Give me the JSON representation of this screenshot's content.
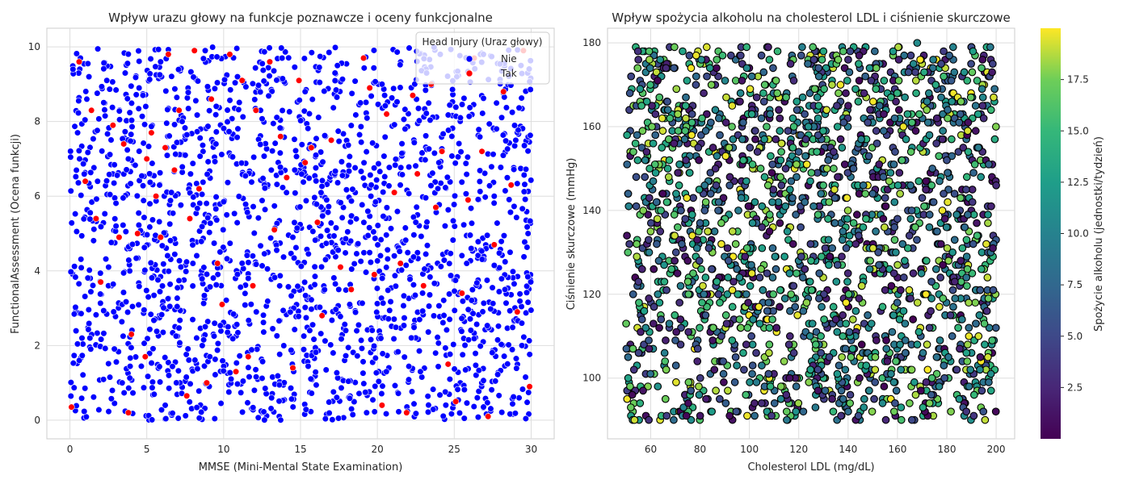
{
  "chart_data": [
    {
      "type": "scatter",
      "title": "Wpływ urazu głowy na funkcje poznawcze i oceny funkcjonalne",
      "xlabel": "MMSE (Mini-Mental State Examination)",
      "ylabel": "FunctionalAssessment (Ocena funkcji)",
      "xlim": [
        -1.5,
        31.5
      ],
      "ylim": [
        -0.5,
        10.5
      ],
      "xticks": [
        0,
        5,
        10,
        15,
        20,
        25,
        30
      ],
      "yticks": [
        0,
        2,
        4,
        6,
        8,
        10
      ],
      "grid": true,
      "legend": {
        "title": "Head Injury (Uraz głowy)",
        "placement": "top-right",
        "entries": [
          {
            "label": "Nie",
            "color": "#0000ff"
          },
          {
            "label": "Tak",
            "color": "#ff0000"
          }
        ]
      },
      "series": [
        {
          "name": "Nie",
          "color": "#0000ff",
          "approx_count": 1950,
          "points": [
            [
              0.2,
              9.4
            ],
            [
              0.5,
              7.7
            ],
            [
              1.1,
              8.6
            ],
            [
              1.8,
              6.4
            ],
            [
              2.4,
              9.1
            ],
            [
              3.0,
              5.2
            ],
            [
              3.8,
              7.0
            ],
            [
              4.5,
              8.9
            ],
            [
              5.1,
              3.3
            ],
            [
              5.9,
              9.6
            ],
            [
              6.6,
              6.1
            ],
            [
              7.3,
              8.0
            ],
            [
              8.0,
              4.2
            ],
            [
              8.8,
              9.9
            ],
            [
              9.5,
              7.4
            ],
            [
              10.2,
              5.5
            ],
            [
              10.9,
              9.2
            ],
            [
              11.6,
              3.8
            ],
            [
              12.4,
              8.3
            ],
            [
              13.1,
              6.7
            ],
            [
              13.8,
              9.7
            ],
            [
              14.5,
              4.9
            ],
            [
              15.3,
              8.8
            ],
            [
              16.0,
              7.1
            ],
            [
              16.7,
              5.9
            ],
            [
              17.4,
              9.5
            ],
            [
              18.2,
              3.1
            ],
            [
              18.9,
              8.5
            ],
            [
              19.6,
              6.3
            ],
            [
              20.3,
              9.0
            ],
            [
              21.1,
              4.4
            ],
            [
              21.8,
              7.8
            ],
            [
              22.5,
              5.3
            ],
            [
              23.2,
              9.3
            ],
            [
              24.0,
              6.9
            ],
            [
              24.7,
              2.7
            ],
            [
              25.4,
              8.1
            ],
            [
              26.1,
              4.6
            ],
            [
              26.9,
              9.8
            ],
            [
              27.6,
              6.0
            ],
            [
              28.3,
              3.5
            ],
            [
              29.0,
              7.5
            ],
            [
              29.8,
              5.0
            ],
            [
              1.3,
              2.2
            ],
            [
              3.4,
              1.0
            ],
            [
              6.2,
              0.4
            ],
            [
              9.1,
              1.7
            ],
            [
              12.0,
              0.8
            ],
            [
              15.6,
              2.4
            ],
            [
              19.3,
              0.2
            ],
            [
              22.8,
              1.3
            ],
            [
              26.5,
              0.6
            ],
            [
              29.4,
              2.0
            ]
          ]
        },
        {
          "name": "Tak",
          "color": "#ff0000",
          "approx_count": 110,
          "points": [
            [
              0.1,
              0.35
            ],
            [
              0.6,
              9.6
            ],
            [
              1.0,
              6.4
            ],
            [
              1.4,
              8.3
            ],
            [
              1.7,
              5.4
            ],
            [
              2.0,
              3.7
            ],
            [
              2.8,
              7.9
            ],
            [
              3.2,
              4.9
            ],
            [
              3.5,
              7.4
            ],
            [
              3.8,
              0.2
            ],
            [
              4.0,
              2.3
            ],
            [
              4.4,
              5.0
            ],
            [
              4.9,
              1.7
            ],
            [
              5.0,
              7.0
            ],
            [
              5.3,
              7.7
            ],
            [
              5.6,
              6.0
            ],
            [
              5.9,
              4.9
            ],
            [
              6.2,
              7.3
            ],
            [
              6.4,
              9.8
            ],
            [
              6.8,
              6.7
            ],
            [
              7.1,
              8.3
            ],
            [
              7.6,
              0.65
            ],
            [
              7.8,
              5.4
            ],
            [
              8.1,
              9.9
            ],
            [
              8.4,
              6.2
            ],
            [
              8.9,
              1.0
            ],
            [
              9.2,
              8.6
            ],
            [
              9.6,
              4.2
            ],
            [
              9.9,
              3.1
            ],
            [
              10.4,
              9.8
            ],
            [
              10.8,
              1.3
            ],
            [
              11.2,
              9.1
            ],
            [
              11.6,
              1.7
            ],
            [
              11.9,
              3.6
            ],
            [
              12.1,
              8.3
            ],
            [
              13.0,
              9.6
            ],
            [
              13.3,
              5.1
            ],
            [
              13.7,
              7.6
            ],
            [
              14.1,
              6.5
            ],
            [
              14.5,
              1.4
            ],
            [
              14.9,
              9.1
            ],
            [
              15.3,
              6.9
            ],
            [
              15.7,
              7.3
            ],
            [
              16.1,
              5.3
            ],
            [
              16.4,
              2.8
            ],
            [
              17.0,
              7.5
            ],
            [
              17.6,
              4.1
            ],
            [
              18.3,
              3.5
            ],
            [
              19.1,
              9.7
            ],
            [
              19.5,
              8.9
            ],
            [
              19.8,
              3.9
            ],
            [
              20.3,
              0.4
            ],
            [
              20.6,
              8.2
            ],
            [
              21.1,
              6.1
            ],
            [
              21.5,
              4.2
            ],
            [
              21.9,
              0.2
            ],
            [
              22.3,
              8.7
            ],
            [
              22.6,
              6.6
            ],
            [
              23.0,
              3.6
            ],
            [
              23.5,
              9.0
            ],
            [
              23.8,
              5.7
            ],
            [
              24.2,
              7.2
            ],
            [
              24.6,
              1.5
            ],
            [
              25.1,
              0.5
            ],
            [
              25.5,
              3.4
            ],
            [
              25.9,
              5.9
            ],
            [
              26.3,
              9.7
            ],
            [
              26.8,
              7.2
            ],
            [
              27.2,
              0.1
            ],
            [
              27.6,
              4.7
            ],
            [
              28.2,
              8.8
            ],
            [
              28.7,
              6.3
            ],
            [
              29.1,
              2.9
            ],
            [
              29.5,
              9.9
            ],
            [
              29.9,
              0.9
            ]
          ]
        }
      ]
    },
    {
      "type": "scatter",
      "title": "Wpływ spożycia alkoholu na cholesterol LDL i ciśnienie skurczowe",
      "xlabel": "Cholesterol LDL (mg/dL)",
      "ylabel": "Ciśnienie skurczowe (mmHg)",
      "xlim": [
        42.5,
        207.5
      ],
      "ylim": [
        85.5,
        183.5
      ],
      "xticks": [
        60,
        80,
        100,
        120,
        140,
        160,
        180,
        200
      ],
      "yticks": [
        100,
        120,
        140,
        160,
        180
      ],
      "grid": true,
      "colorbar": {
        "label": "Spożycie alkoholu (jednostki/tydzień)",
        "colormap": "viridis",
        "range": [
          0,
          20
        ],
        "ticks": [
          2.5,
          5.0,
          7.5,
          10.0,
          12.5,
          15.0,
          17.5
        ],
        "tick_labels": [
          "2.5",
          "5.0",
          "7.5",
          "10.0",
          "12.5",
          "15.0",
          "17.5"
        ]
      },
      "marker_edge_color": "#000000",
      "approx_count": 2100,
      "points": [
        {
          "x": 55,
          "y": 176,
          "c": 3.1
        },
        {
          "x": 62,
          "y": 149,
          "c": 12.4
        },
        {
          "x": 71,
          "y": 163,
          "c": 18.2
        },
        {
          "x": 80,
          "y": 137,
          "c": 6.7
        },
        {
          "x": 88,
          "y": 118,
          "c": 15.0
        },
        {
          "x": 97,
          "y": 171,
          "c": 1.2
        },
        {
          "x": 105,
          "y": 103,
          "c": 9.8
        },
        {
          "x": 113,
          "y": 156,
          "c": 19.1
        },
        {
          "x": 121,
          "y": 129,
          "c": 4.4
        },
        {
          "x": 130,
          "y": 178,
          "c": 13.6
        },
        {
          "x": 138,
          "y": 95,
          "c": 7.9
        },
        {
          "x": 147,
          "y": 144,
          "c": 16.8
        },
        {
          "x": 155,
          "y": 121,
          "c": 2.2
        },
        {
          "x": 163,
          "y": 167,
          "c": 11.3
        },
        {
          "x": 172,
          "y": 108,
          "c": 18.9
        },
        {
          "x": 180,
          "y": 152,
          "c": 5.6
        },
        {
          "x": 188,
          "y": 133,
          "c": 14.7
        },
        {
          "x": 197,
          "y": 99,
          "c": 8.1
        },
        {
          "x": 58,
          "y": 112,
          "c": 10.5
        },
        {
          "x": 66,
          "y": 95,
          "c": 17.3
        },
        {
          "x": 75,
          "y": 128,
          "c": 0.8
        },
        {
          "x": 84,
          "y": 174,
          "c": 12.0
        },
        {
          "x": 92,
          "y": 146,
          "c": 6.2
        },
        {
          "x": 101,
          "y": 125,
          "c": 19.6
        },
        {
          "x": 109,
          "y": 91,
          "c": 3.7
        },
        {
          "x": 118,
          "y": 160,
          "c": 15.5
        },
        {
          "x": 126,
          "y": 141,
          "c": 9.0
        },
        {
          "x": 135,
          "y": 114,
          "c": 1.9
        },
        {
          "x": 143,
          "y": 169,
          "c": 13.1
        },
        {
          "x": 151,
          "y": 105,
          "c": 17.7
        },
        {
          "x": 160,
          "y": 138,
          "c": 4.9
        },
        {
          "x": 168,
          "y": 180,
          "c": 10.9
        },
        {
          "x": 177,
          "y": 117,
          "c": 19.4
        },
        {
          "x": 185,
          "y": 161,
          "c": 7.3
        },
        {
          "x": 194,
          "y": 126,
          "c": 14.2
        },
        {
          "x": 200,
          "y": 146,
          "c": 2.8
        }
      ]
    }
  ]
}
